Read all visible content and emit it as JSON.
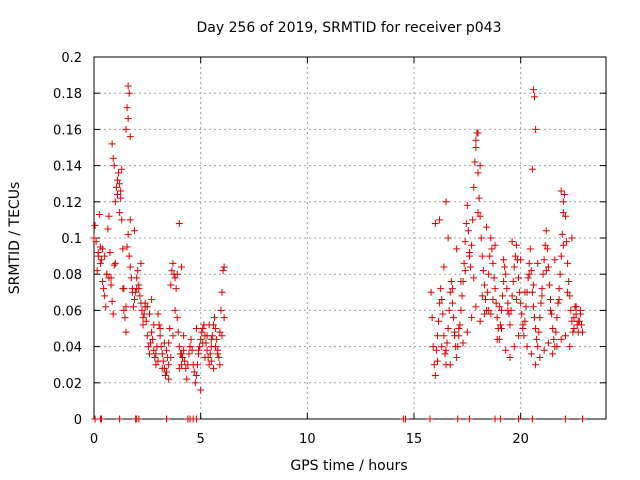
{
  "chart_data": {
    "type": "scatter",
    "title": "Day 256 of 2019, SRMTID for receiver p043",
    "xlabel": "GPS time / hours",
    "ylabel": "SRMTID / TECUs",
    "xlim": [
      0,
      24
    ],
    "ylim": [
      0,
      0.2
    ],
    "x_ticks": [
      0,
      5,
      10,
      15,
      20
    ],
    "y_ticks": [
      0,
      0.02,
      0.04,
      0.06,
      0.08,
      0.1,
      0.12,
      0.14,
      0.16,
      0.18,
      0.2
    ],
    "x_tick_labels": [
      "0",
      "5",
      "10",
      "15",
      "20"
    ],
    "y_tick_labels": [
      "0",
      "0.02",
      "0.04",
      "0.06",
      "0.08",
      "0.1",
      "0.12",
      "0.14",
      "0.16",
      "0.18",
      "0.2"
    ],
    "grid": true,
    "marker": "+",
    "color": "#dd0000",
    "series": [
      {
        "name": "SRMTID",
        "x": [
          0.0,
          0.05,
          0.1,
          0.15,
          0.2,
          0.25,
          0.3,
          0.35,
          0.4,
          0.45,
          0.5,
          0.55,
          0.6,
          0.65,
          0.7,
          0.75,
          0.8,
          0.85,
          0.9,
          0.95,
          1.0,
          1.05,
          1.1,
          1.15,
          1.2,
          1.25,
          1.3,
          1.35,
          1.4,
          1.45,
          1.5,
          1.55,
          1.6,
          1.65,
          1.7,
          1.75,
          1.8,
          1.85,
          1.9,
          1.95,
          2.0,
          2.05,
          2.1,
          2.15,
          2.2,
          2.25,
          2.3,
          2.35,
          2.4,
          2.45,
          2.5,
          2.55,
          2.6,
          2.65,
          2.7,
          2.75,
          2.8,
          2.85,
          2.9,
          2.95,
          3.0,
          3.05,
          3.1,
          3.15,
          3.2,
          3.25,
          3.3,
          3.35,
          3.4,
          3.45,
          3.5,
          3.55,
          3.6,
          3.65,
          3.7,
          3.75,
          3.8,
          3.85,
          3.9,
          3.95,
          4.0,
          4.05,
          4.1,
          4.15,
          4.2,
          4.25,
          4.3,
          4.35,
          4.4,
          4.45,
          4.5,
          4.55,
          4.6,
          4.65,
          4.7,
          4.75,
          4.8,
          4.85,
          4.9,
          4.95,
          5.0,
          5.05,
          5.1,
          5.15,
          5.2,
          5.25,
          5.3,
          5.35,
          5.4,
          5.45,
          5.5,
          5.55,
          5.6,
          5.65,
          5.7,
          5.75,
          5.8,
          5.85,
          5.9,
          5.95,
          6.0,
          6.05,
          6.1,
          0.3,
          0.5,
          0.7,
          0.9,
          1.1,
          1.3,
          1.5,
          1.7,
          1.9,
          2.1,
          2.3,
          2.5,
          2.7,
          2.9,
          3.1,
          3.3,
          3.5,
          3.7,
          3.9,
          4.1,
          4.9,
          5.1,
          5.3,
          5.5,
          5.7,
          5.9,
          0.6,
          1.0,
          1.4,
          1.6,
          2.0,
          2.6,
          3.0,
          3.4,
          3.8,
          4.2,
          5.2,
          5.6,
          6.0,
          0.2,
          0.8,
          1.2,
          1.8,
          2.2,
          2.8,
          3.2,
          3.6,
          4.0,
          4.8,
          5.4,
          5.8,
          0.4,
          1.5,
          2.4,
          3.5,
          4.5,
          5.0,
          5.5,
          6.1,
          1.55,
          1.6,
          1.65,
          1.7,
          0.85,
          0.95,
          1.25,
          1.35,
          4.0,
          4.1,
          15.8,
          15.85,
          15.9,
          15.95,
          16.0,
          16.05,
          16.1,
          16.15,
          16.2,
          16.25,
          16.3,
          16.35,
          16.4,
          16.45,
          16.5,
          16.55,
          16.6,
          16.65,
          16.7,
          16.75,
          16.8,
          16.85,
          16.9,
          16.95,
          17.0,
          17.05,
          17.1,
          17.15,
          17.2,
          17.25,
          17.3,
          17.35,
          17.4,
          17.45,
          17.5,
          17.55,
          17.6,
          17.65,
          17.7,
          17.75,
          17.8,
          17.85,
          17.9,
          17.95,
          18.0,
          18.05,
          18.1,
          18.15,
          18.2,
          18.25,
          18.3,
          18.35,
          18.4,
          18.45,
          18.5,
          18.55,
          18.6,
          18.65,
          18.7,
          18.75,
          18.8,
          18.85,
          18.9,
          18.95,
          19.0,
          19.05,
          19.1,
          19.15,
          19.2,
          19.25,
          19.3,
          19.35,
          19.4,
          19.45,
          19.5,
          19.55,
          19.6,
          19.65,
          19.7,
          19.75,
          19.8,
          19.85,
          19.9,
          19.95,
          20.0,
          20.05,
          20.1,
          20.15,
          20.2,
          20.25,
          20.3,
          20.35,
          20.4,
          20.45,
          20.5,
          20.55,
          20.6,
          20.65,
          20.7,
          20.75,
          20.8,
          20.85,
          20.9,
          20.95,
          21.0,
          21.05,
          21.1,
          21.15,
          21.2,
          21.25,
          21.3,
          21.35,
          21.4,
          21.45,
          21.5,
          21.55,
          21.6,
          21.65,
          21.7,
          21.75,
          21.8,
          21.85,
          21.9,
          21.95,
          22.0,
          22.05,
          22.1,
          22.15,
          22.2,
          22.25,
          22.3,
          22.35,
          22.4,
          22.45,
          22.5,
          22.55,
          22.6,
          22.65,
          22.7,
          22.75,
          22.8,
          22.85,
          22.9,
          16.1,
          16.3,
          16.5,
          16.7,
          16.9,
          17.1,
          17.3,
          17.5,
          17.7,
          17.9,
          18.1,
          18.3,
          18.5,
          18.7,
          18.9,
          19.1,
          19.3,
          19.5,
          19.7,
          19.9,
          20.1,
          20.3,
          20.5,
          20.7,
          20.9,
          21.1,
          21.3,
          21.5,
          21.7,
          21.9,
          22.1,
          22.3,
          22.5,
          22.7,
          16.2,
          16.6,
          17.0,
          17.4,
          17.8,
          18.2,
          18.6,
          19.0,
          19.4,
          19.8,
          20.2,
          20.6,
          21.0,
          21.4,
          21.8,
          22.2,
          22.6,
          16.4,
          16.8,
          17.2,
          17.6,
          18.0,
          18.4,
          18.8,
          19.2,
          19.6,
          20.0,
          20.4,
          20.8,
          21.2,
          21.6,
          22.0,
          22.4,
          22.8,
          17.9,
          18.0,
          18.1,
          20.6,
          20.65,
          20.7,
          20.55,
          21.9,
          22.0,
          16.5,
          16.0,
          0.05,
          0.3,
          0.35,
          1.2,
          1.95,
          2.0,
          2.1,
          3.4,
          4.4,
          4.5,
          4.65,
          4.8,
          14.5,
          14.6,
          15.75,
          17.05,
          17.6,
          18.8,
          19.05,
          19.9,
          20.55,
          22.1,
          22.9
        ],
        "y": [
          0.1,
          0.107,
          0.098,
          0.082,
          0.09,
          0.113,
          0.095,
          0.088,
          0.076,
          0.072,
          0.068,
          0.062,
          0.08,
          0.105,
          0.112,
          0.092,
          0.078,
          0.065,
          0.058,
          0.085,
          0.12,
          0.128,
          0.132,
          0.136,
          0.13,
          0.122,
          0.11,
          0.072,
          0.06,
          0.056,
          0.048,
          0.095,
          0.102,
          0.09,
          0.084,
          0.078,
          0.07,
          0.062,
          0.066,
          0.07,
          0.078,
          0.082,
          0.074,
          0.068,
          0.064,
          0.06,
          0.052,
          0.058,
          0.062,
          0.054,
          0.046,
          0.04,
          0.036,
          0.042,
          0.048,
          0.044,
          0.038,
          0.034,
          0.03,
          0.04,
          0.058,
          0.052,
          0.046,
          0.04,
          0.036,
          0.032,
          0.028,
          0.024,
          0.026,
          0.034,
          0.042,
          0.05,
          0.074,
          0.082,
          0.086,
          0.08,
          0.078,
          0.072,
          0.056,
          0.048,
          0.04,
          0.036,
          0.03,
          0.034,
          0.038,
          0.032,
          0.028,
          0.022,
          0.03,
          0.036,
          0.04,
          0.044,
          0.038,
          0.03,
          0.026,
          0.02,
          0.024,
          0.03,
          0.036,
          0.04,
          0.044,
          0.048,
          0.05,
          0.052,
          0.046,
          0.042,
          0.038,
          0.034,
          0.03,
          0.036,
          0.04,
          0.046,
          0.052,
          0.056,
          0.05,
          0.044,
          0.038,
          0.034,
          0.03,
          0.06,
          0.07,
          0.082,
          0.084,
          0.086,
          0.09,
          0.078,
          0.144,
          0.124,
          0.138,
          0.062,
          0.11,
          0.104,
          0.072,
          0.056,
          0.062,
          0.066,
          0.036,
          0.05,
          0.042,
          0.022,
          0.046,
          0.08,
          0.036,
          0.038,
          0.042,
          0.046,
          0.032,
          0.04,
          0.048,
          0.08,
          0.086,
          0.072,
          0.166,
          0.072,
          0.058,
          0.032,
          0.038,
          0.06,
          0.046,
          0.034,
          0.028,
          0.046,
          0.092,
          0.074,
          0.114,
          0.072,
          0.086,
          0.052,
          0.028,
          0.034,
          0.028,
          0.05,
          0.052,
          0.036,
          0.094,
          0.16,
          0.064,
          0.03,
          0.04,
          0.016,
          0.044,
          0.056,
          0.172,
          0.184,
          0.18,
          0.156,
          0.152,
          0.14,
          0.126,
          0.094,
          0.108,
          0.084,
          0.07,
          0.056,
          0.04,
          0.03,
          0.024,
          0.038,
          0.046,
          0.054,
          0.064,
          0.072,
          0.066,
          0.058,
          0.046,
          0.036,
          0.03,
          0.042,
          0.05,
          0.06,
          0.07,
          0.076,
          0.064,
          0.056,
          0.048,
          0.04,
          0.034,
          0.04,
          0.046,
          0.052,
          0.06,
          0.068,
          0.076,
          0.086,
          0.098,
          0.108,
          0.118,
          0.104,
          0.092,
          0.084,
          0.096,
          0.11,
          0.128,
          0.142,
          0.15,
          0.158,
          0.136,
          0.122,
          0.112,
          0.1,
          0.09,
          0.082,
          0.074,
          0.066,
          0.06,
          0.07,
          0.08,
          0.09,
          0.1,
          0.094,
          0.086,
          0.078,
          0.072,
          0.064,
          0.056,
          0.05,
          0.044,
          0.052,
          0.06,
          0.068,
          0.076,
          0.084,
          0.08,
          0.072,
          0.064,
          0.058,
          0.052,
          0.06,
          0.068,
          0.076,
          0.084,
          0.09,
          0.096,
          0.088,
          0.078,
          0.07,
          0.064,
          0.058,
          0.052,
          0.046,
          0.054,
          0.062,
          0.07,
          0.078,
          0.086,
          0.094,
          0.082,
          0.07,
          0.062,
          0.056,
          0.05,
          0.044,
          0.04,
          0.048,
          0.056,
          0.064,
          0.072,
          0.08,
          0.088,
          0.096,
          0.104,
          0.094,
          0.084,
          0.074,
          0.066,
          0.058,
          0.05,
          0.044,
          0.04,
          0.048,
          0.056,
          0.064,
          0.072,
          0.08,
          0.09,
          0.102,
          0.114,
          0.124,
          0.112,
          0.098,
          0.086,
          0.076,
          0.068,
          0.06,
          0.054,
          0.048,
          0.056,
          0.062,
          0.058,
          0.052,
          0.048,
          0.054,
          0.058,
          0.052,
          0.048,
          0.032,
          0.04,
          0.038,
          0.03,
          0.046,
          0.05,
          0.042,
          0.048,
          0.056,
          0.062,
          0.054,
          0.058,
          0.06,
          0.066,
          0.044,
          0.05,
          0.038,
          0.034,
          0.04,
          0.046,
          0.05,
          0.04,
          0.036,
          0.03,
          0.034,
          0.038,
          0.042,
          0.036,
          0.04,
          0.044,
          0.046,
          0.04,
          0.05,
          0.054,
          0.11,
          0.1,
          0.094,
          0.082,
          0.078,
          0.068,
          0.058,
          0.062,
          0.06,
          0.066,
          0.07,
          0.074,
          0.068,
          0.06,
          0.066,
          0.07,
          0.062,
          0.084,
          0.072,
          0.076,
          0.09,
          0.114,
          0.106,
          0.096,
          0.088,
          0.098,
          0.088,
          0.08,
          0.086,
          0.082,
          0.088,
          0.096,
          0.1,
          0.06,
          0.154,
          0.158,
          0.14,
          0.182,
          0.178,
          0.16,
          0.138,
          0.126,
          0.12,
          0.12,
          0.108,
          0.0,
          0.0,
          0.0,
          0.0,
          0.0,
          0.0,
          0.0,
          0.0,
          0.0,
          0.0,
          0.0,
          0.0,
          0.0,
          0.0,
          0.0,
          0.0,
          0.0,
          0.0,
          0.0,
          0.0,
          0.0,
          0.0,
          0.0
        ]
      }
    ]
  }
}
